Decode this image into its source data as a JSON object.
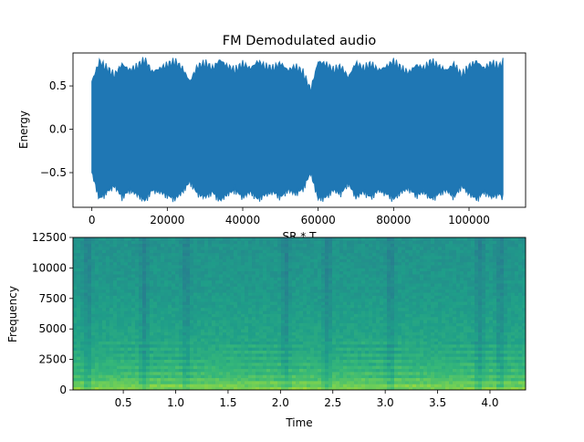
{
  "chart_data": [
    {
      "type": "line",
      "title": "FM Demodulated audio",
      "xlabel": "SR * T",
      "ylabel": "Energy",
      "xlim": [
        -5000,
        115000
      ],
      "ylim": [
        -0.9,
        0.88
      ],
      "x_ticks": [
        0,
        20000,
        40000,
        60000,
        80000,
        100000
      ],
      "x_tick_labels": [
        "0",
        "20000",
        "40000",
        "60000",
        "80000",
        "100000"
      ],
      "y_ticks": [
        0.5,
        0.0,
        -0.5
      ],
      "y_tick_labels": [
        "0.5",
        "0.0",
        "−0.5"
      ],
      "grid": false,
      "legend": "none",
      "series_color": "#1f77b4",
      "series": [
        {
          "x": [
            0,
            2000,
            4000,
            6000,
            8000,
            10000,
            12000,
            14000,
            16000,
            18000,
            20000,
            22000,
            24000,
            26000,
            28000,
            30000,
            32000,
            34000,
            36000,
            38000,
            40000,
            42000,
            44000,
            46000,
            48000,
            50000,
            52000,
            54000,
            56000,
            58000,
            60000,
            62000,
            64000,
            66000,
            68000,
            70000,
            72000,
            74000,
            76000,
            78000,
            80000,
            82000,
            84000,
            86000,
            88000,
            90000,
            92000,
            94000,
            96000,
            98000,
            100000,
            102000,
            104000,
            106000,
            108000,
            109000
          ],
          "upper": [
            0.55,
            0.78,
            0.7,
            0.62,
            0.75,
            0.68,
            0.72,
            0.8,
            0.66,
            0.7,
            0.74,
            0.78,
            0.7,
            0.55,
            0.72,
            0.76,
            0.7,
            0.8,
            0.72,
            0.68,
            0.75,
            0.7,
            0.78,
            0.72,
            0.7,
            0.76,
            0.68,
            0.72,
            0.65,
            0.45,
            0.78,
            0.75,
            0.68,
            0.72,
            0.6,
            0.76,
            0.7,
            0.75,
            0.68,
            0.72,
            0.78,
            0.7,
            0.65,
            0.74,
            0.7,
            0.78,
            0.72,
            0.68,
            0.75,
            0.62,
            0.72,
            0.78,
            0.7,
            0.76,
            0.72,
            0.78
          ],
          "lower": [
            -0.5,
            -0.8,
            -0.72,
            -0.65,
            -0.78,
            -0.7,
            -0.75,
            -0.82,
            -0.7,
            -0.72,
            -0.76,
            -0.8,
            -0.72,
            -0.6,
            -0.74,
            -0.78,
            -0.72,
            -0.82,
            -0.74,
            -0.7,
            -0.78,
            -0.72,
            -0.8,
            -0.75,
            -0.72,
            -0.78,
            -0.7,
            -0.74,
            -0.68,
            -0.5,
            -0.8,
            -0.78,
            -0.7,
            -0.74,
            -0.62,
            -0.78,
            -0.72,
            -0.78,
            -0.7,
            -0.74,
            -0.8,
            -0.72,
            -0.68,
            -0.76,
            -0.72,
            -0.8,
            -0.74,
            -0.7,
            -0.78,
            -0.65,
            -0.74,
            -0.8,
            -0.72,
            -0.78,
            -0.74,
            -0.8
          ]
        }
      ]
    },
    {
      "type": "heatmap",
      "title": "",
      "xlabel": "Time",
      "ylabel": "Frequency",
      "xlim": [
        0.02,
        4.34
      ],
      "ylim": [
        0,
        12500
      ],
      "x_ticks": [
        0.5,
        1.0,
        1.5,
        2.0,
        2.5,
        3.0,
        3.5,
        4.0
      ],
      "x_tick_labels": [
        "0.5",
        "1.0",
        "1.5",
        "2.0",
        "2.5",
        "3.0",
        "3.5",
        "4.0"
      ],
      "y_ticks": [
        0,
        2500,
        5000,
        7500,
        10000,
        12500
      ],
      "y_tick_labels": [
        "0",
        "2500",
        "5000",
        "7500",
        "10000",
        "12500"
      ],
      "colormap": [
        "#31688e",
        "#26828e",
        "#1f9e89",
        "#35b779",
        "#6ece58",
        "#b5de2b",
        "#fde725"
      ],
      "freq_profile": [
        0.72,
        0.64,
        0.55,
        0.5,
        0.47,
        0.44,
        0.42,
        0.4,
        0.38,
        0.37,
        0.36,
        0.35,
        0.34,
        0.33,
        0.32,
        0.31,
        0.3,
        0.3,
        0.29,
        0.29,
        0.28,
        0.28,
        0.27,
        0.27,
        0.26
      ],
      "dark_bands_time": [
        0.16,
        0.7,
        1.1,
        2.05,
        2.45,
        3.05,
        3.9,
        4.1
      ]
    }
  ]
}
